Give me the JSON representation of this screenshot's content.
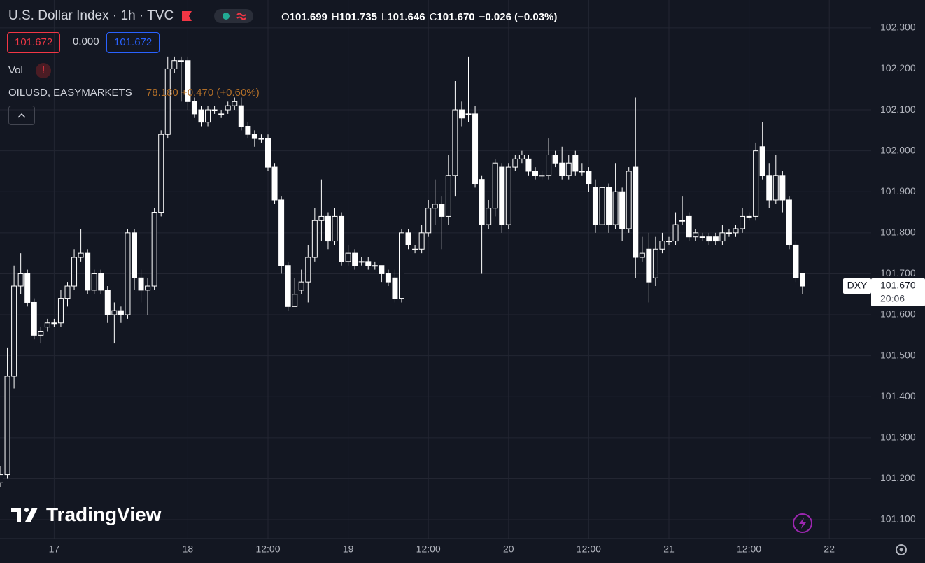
{
  "header": {
    "ohlc": [
      {
        "label": "O",
        "value": "101.699"
      },
      {
        "label": "H",
        "value": "101.735"
      },
      {
        "label": "L",
        "value": "101.646"
      },
      {
        "label": "C",
        "value": "101.670"
      }
    ],
    "change": "−0.026 (−0.03%)",
    "boxes": [
      "101.672",
      "0.000",
      "101.672"
    ]
  },
  "indicators": {
    "vol": "Vol",
    "compare_name": "OILUSD, EASYMARKETS",
    "compare_values": "78.180 +0.470 (+0.60%)"
  },
  "last_price": {
    "symbol": "DXY",
    "value": 101.67,
    "label": "101.670",
    "time": "20:06"
  },
  "logo": "TradingView",
  "chart_data": {
    "type": "candlestick",
    "title": "U.S. Dollar Index · 1h · TVC",
    "up_color": "#ffffff",
    "down_color": "#ffffff",
    "grid": true,
    "ylim": [
      101.054,
      102.368
    ],
    "yticks": [
      {
        "value": 101.1,
        "label": "101.100"
      },
      {
        "value": 101.2,
        "label": "101.200"
      },
      {
        "value": 101.3,
        "label": "101.300"
      },
      {
        "value": 101.4,
        "label": "101.400"
      },
      {
        "value": 101.5,
        "label": "101.500"
      },
      {
        "value": 101.6,
        "label": "101.600"
      },
      {
        "value": 101.7,
        "label": "101.700"
      },
      {
        "value": 101.8,
        "label": "101.800"
      },
      {
        "value": 101.9,
        "label": "101.900"
      },
      {
        "value": 102.0,
        "label": "102.000"
      },
      {
        "value": 102.1,
        "label": "102.100"
      },
      {
        "value": 102.2,
        "label": "102.200"
      },
      {
        "value": 102.3,
        "label": "102.300"
      }
    ],
    "categories": [
      null,
      null,
      null,
      null,
      null,
      null,
      null,
      null,
      "17",
      null,
      null,
      null,
      null,
      null,
      null,
      null,
      null,
      null,
      null,
      null,
      null,
      null,
      null,
      null,
      null,
      null,
      null,
      null,
      "18",
      null,
      null,
      null,
      null,
      null,
      null,
      null,
      null,
      null,
      null,
      null,
      "12:00",
      null,
      null,
      null,
      null,
      null,
      null,
      null,
      null,
      null,
      null,
      null,
      "19",
      null,
      null,
      null,
      null,
      null,
      null,
      null,
      null,
      null,
      null,
      null,
      "12:00",
      null,
      null,
      null,
      null,
      null,
      null,
      null,
      null,
      null,
      null,
      null,
      "20",
      null,
      null,
      null,
      null,
      null,
      null,
      null,
      null,
      null,
      null,
      null,
      "12:00",
      null,
      null,
      null,
      null,
      null,
      null,
      null,
      null,
      null,
      null,
      null,
      "21",
      null,
      null,
      null,
      null,
      null,
      null,
      null,
      null,
      null,
      null,
      null,
      "12:00",
      null,
      null,
      null,
      null,
      null,
      null,
      null,
      null,
      null,
      null,
      null,
      "22"
    ],
    "open": [
      101.19,
      101.21,
      101.45,
      101.67,
      101.7,
      101.63,
      101.55,
      101.57,
      101.58,
      101.58,
      101.64,
      101.67,
      101.74,
      101.75,
      101.66,
      101.7,
      101.66,
      101.6,
      101.61,
      101.6,
      101.8,
      101.69,
      101.66,
      101.67,
      101.85,
      102.04,
      102.2,
      102.22,
      102.22,
      102.12,
      102.1,
      102.07,
      102.1,
      102.09,
      102.1,
      102.11,
      102.11,
      102.06,
      102.04,
      102.03,
      102.03,
      101.96,
      101.88,
      101.72,
      101.62,
      101.66,
      101.68,
      101.74,
      101.83,
      101.84,
      101.78,
      101.84,
      101.73,
      101.75,
      101.73,
      101.73,
      101.72,
      101.72,
      101.7,
      101.69,
      101.64,
      101.8,
      101.76,
      101.76,
      101.8,
      101.86,
      101.87,
      101.84,
      101.94,
      102.1,
      102.09,
      102.09,
      101.93,
      101.82,
      101.86,
      101.96,
      101.82,
      101.96,
      101.98,
      101.98,
      101.95,
      101.94,
      101.94,
      101.99,
      101.97,
      101.94,
      101.99,
      101.95,
      101.95,
      101.91,
      101.82,
      101.91,
      101.82,
      101.9,
      101.81,
      101.96,
      101.74,
      101.76,
      101.69,
      101.76,
      101.78,
      101.78,
      101.83,
      101.84,
      101.79,
      101.79,
      101.79,
      101.79,
      101.78,
      101.8,
      101.8,
      101.81,
      101.84,
      101.84,
      102.01,
      101.94,
      101.88,
      101.94,
      101.88,
      101.77,
      101.7,
      null,
      null,
      null,
      null
    ],
    "high": [
      101.23,
      101.52,
      101.72,
      101.75,
      101.71,
      101.64,
      101.57,
      101.59,
      101.59,
      101.66,
      101.68,
      101.76,
      101.81,
      101.76,
      101.71,
      101.71,
      101.67,
      101.63,
      101.62,
      101.81,
      101.81,
      101.71,
      101.69,
      101.86,
      102.05,
      102.23,
      102.23,
      102.23,
      102.23,
      102.13,
      102.11,
      102.11,
      102.11,
      102.1,
      102.12,
      102.13,
      102.13,
      102.07,
      102.05,
      102.04,
      102.04,
      101.97,
      101.89,
      101.73,
      101.69,
      101.71,
      101.77,
      101.86,
      101.93,
      101.85,
      101.86,
      101.85,
      101.77,
      101.76,
      101.74,
      101.74,
      101.73,
      101.71,
      101.71,
      101.71,
      101.81,
      101.81,
      101.77,
      101.82,
      101.88,
      101.93,
      101.89,
      101.99,
      102.17,
      102.12,
      102.23,
      102.11,
      101.94,
      101.88,
      101.98,
      101.97,
      101.97,
      101.99,
      102.0,
      101.99,
      101.96,
      101.95,
      102.03,
      102.0,
      102.01,
      101.99,
      102.0,
      101.97,
      101.96,
      101.93,
      101.93,
      101.92,
      101.97,
      101.91,
      101.96,
      102.13,
      101.79,
      101.8,
      101.79,
      101.8,
      101.79,
      101.85,
      101.89,
      101.85,
      101.81,
      101.8,
      101.8,
      101.8,
      101.82,
      101.81,
      101.82,
      101.86,
      101.85,
      102.02,
      102.07,
      101.97,
      101.99,
      101.95,
      101.89,
      101.78,
      101.7,
      null,
      null,
      null,
      null
    ],
    "low": [
      101.18,
      101.2,
      101.42,
      101.65,
      101.62,
      101.54,
      101.53,
      101.56,
      101.57,
      101.57,
      101.62,
      101.66,
      101.73,
      101.65,
      101.65,
      101.65,
      101.58,
      101.53,
      101.58,
      101.59,
      101.66,
      101.63,
      101.6,
      101.66,
      101.84,
      102.03,
      102.19,
      102.12,
      102.1,
      102.08,
      102.06,
      102.06,
      102.09,
      102.08,
      102.09,
      102.1,
      102.05,
      102.03,
      102.01,
      102.02,
      101.95,
      101.87,
      101.7,
      101.61,
      101.62,
      101.65,
      101.63,
      101.73,
      101.78,
      101.76,
      101.77,
      101.72,
      101.72,
      101.71,
      101.72,
      101.71,
      101.71,
      101.68,
      101.67,
      101.63,
      101.63,
      101.76,
      101.75,
      101.75,
      101.79,
      101.82,
      101.76,
      101.82,
      101.89,
      102.06,
      102.07,
      101.91,
      101.7,
      101.81,
      101.84,
      101.8,
      101.81,
      101.95,
      101.97,
      101.94,
      101.93,
      101.93,
      101.93,
      101.96,
      101.93,
      101.93,
      101.94,
      101.94,
      101.9,
      101.8,
      101.81,
      101.8,
      101.81,
      101.78,
      101.8,
      101.69,
      101.73,
      101.63,
      101.67,
      101.75,
      101.77,
      101.77,
      101.82,
      101.78,
      101.78,
      101.78,
      101.77,
      101.77,
      101.77,
      101.79,
      101.79,
      101.8,
      101.83,
      101.83,
      101.93,
      101.86,
      101.87,
      101.85,
      101.76,
      101.68,
      101.65,
      null,
      null,
      null,
      null
    ],
    "close": [
      101.21,
      101.45,
      101.67,
      101.7,
      101.63,
      101.55,
      101.56,
      101.58,
      101.58,
      101.64,
      101.67,
      101.74,
      101.75,
      101.66,
      101.7,
      101.66,
      101.6,
      101.61,
      101.6,
      101.8,
      101.69,
      101.66,
      101.67,
      101.85,
      102.04,
      102.2,
      102.22,
      102.22,
      102.12,
      102.09,
      102.07,
      102.1,
      102.1,
      102.09,
      102.11,
      102.12,
      102.06,
      102.04,
      102.03,
      102.03,
      101.96,
      101.88,
      101.72,
      101.62,
      101.65,
      101.68,
      101.74,
      101.83,
      101.84,
      101.78,
      101.84,
      101.73,
      101.75,
      101.72,
      101.73,
      101.72,
      101.72,
      101.7,
      101.68,
      101.64,
      101.8,
      101.77,
      101.76,
      101.8,
      101.86,
      101.87,
      101.84,
      101.94,
      102.1,
      102.08,
      102.09,
      101.92,
      101.82,
      101.86,
      101.97,
      101.82,
      101.96,
      101.98,
      101.99,
      101.95,
      101.94,
      101.94,
      101.99,
      101.97,
      101.94,
      101.97,
      101.95,
      101.95,
      101.92,
      101.82,
      101.91,
      101.82,
      101.9,
      101.81,
      101.95,
      101.74,
      101.75,
      101.68,
      101.76,
      101.78,
      101.78,
      101.82,
      101.83,
      101.79,
      101.8,
      101.79,
      101.78,
      101.78,
      101.8,
      101.8,
      101.81,
      101.84,
      101.84,
      102.0,
      101.94,
      101.88,
      101.94,
      101.88,
      101.77,
      101.69,
      101.67,
      null,
      null,
      null,
      null
    ]
  }
}
